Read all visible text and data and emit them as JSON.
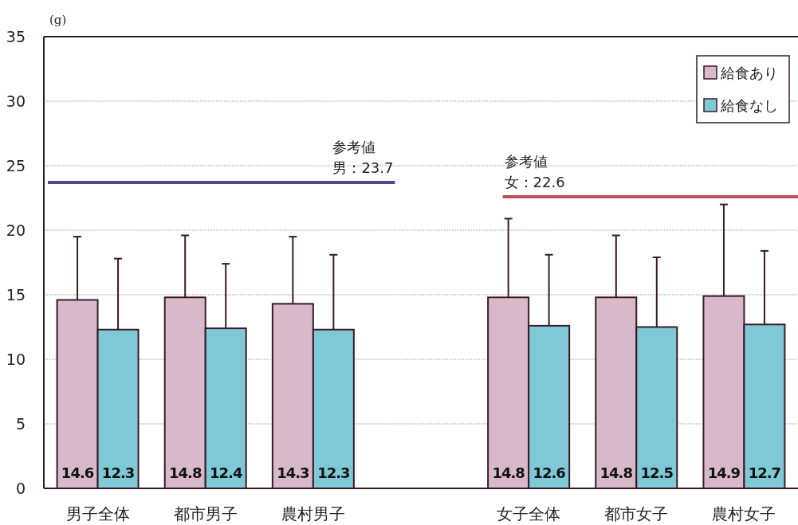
{
  "chart_data": {
    "type": "bar",
    "ylabel": "(g)",
    "categories": [
      "男子全体",
      "都市男子",
      "農村男子",
      null,
      "女子全体",
      "都市女子",
      "農村女子"
    ],
    "series": [
      {
        "name": "給食あり",
        "color": "#d8b9c9",
        "values": [
          14.6,
          14.8,
          14.3,
          null,
          14.8,
          14.8,
          14.9
        ],
        "errors": [
          [
            14.6,
            19.5
          ],
          [
            14.8,
            19.6
          ],
          [
            14.3,
            19.5
          ],
          null,
          [
            14.8,
            20.9
          ],
          [
            14.8,
            19.6
          ],
          [
            14.9,
            22.0
          ]
        ]
      },
      {
        "name": "給食なし",
        "color": "#7fc8d6",
        "values": [
          12.3,
          12.4,
          12.3,
          null,
          12.6,
          12.5,
          12.7
        ],
        "errors": [
          [
            12.3,
            17.8
          ],
          [
            12.4,
            17.4
          ],
          [
            12.3,
            18.1
          ],
          null,
          [
            12.6,
            18.1
          ],
          [
            12.5,
            17.9
          ],
          [
            12.7,
            18.4
          ]
        ]
      }
    ],
    "ylim": [
      0,
      35
    ],
    "yticks": [
      0,
      5,
      10,
      15,
      20,
      25,
      30,
      35
    ],
    "grid": "y",
    "legend": "top right",
    "data_labels": true,
    "ref_lines": [
      {
        "axis": "y",
        "value": 23.7,
        "label": "参考値男：23.7",
        "color": "#4a4a8c"
      },
      {
        "axis": "y",
        "value": 22.6,
        "label": "参考値女：22.6",
        "color": "#c0505a"
      }
    ]
  }
}
